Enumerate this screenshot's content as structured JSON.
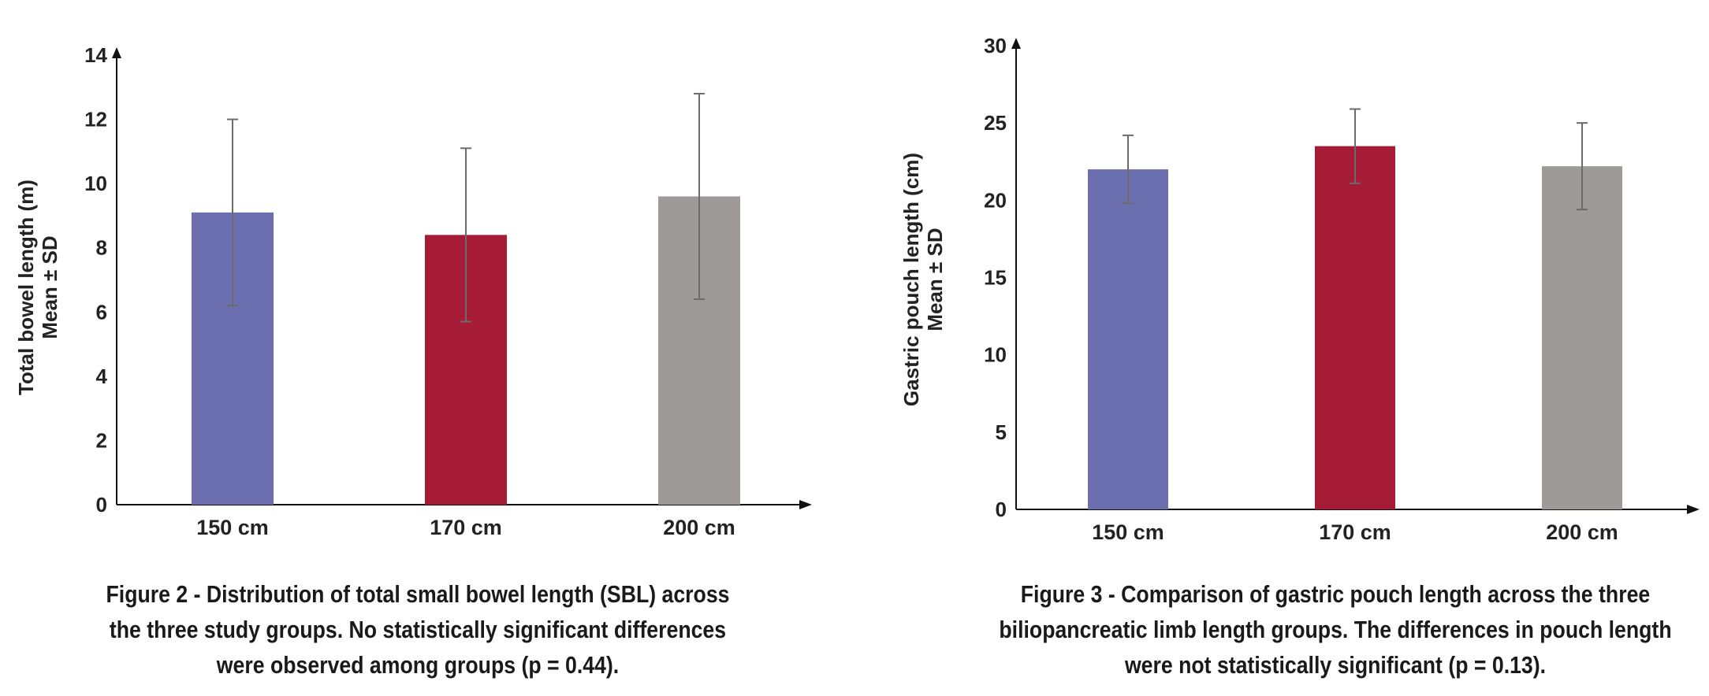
{
  "chart_data": [
    {
      "type": "bar",
      "categories": [
        "150 cm",
        "170 cm",
        "200 cm"
      ],
      "values": [
        9.1,
        8.4,
        9.6
      ],
      "error": [
        2.9,
        2.7,
        3.2
      ],
      "ylabel_line1": "Total bowel length (m)",
      "ylabel_line2": "Mean ± SD",
      "ylim": [
        0,
        14
      ],
      "yticks": [
        0,
        2,
        4,
        6,
        8,
        10,
        12,
        14
      ],
      "colors": [
        "#6b6fb0",
        "#a61c36",
        "#9d9a99"
      ],
      "caption": {
        "lines": [
          "Figure 2 - Distribution of total small bowel length (SBL) across",
          "the three study groups. No statistically significant differences",
          "were observed among groups (p = 0.44)."
        ]
      }
    },
    {
      "type": "bar",
      "categories": [
        "150 cm",
        "170 cm",
        "200 cm"
      ],
      "values": [
        22.0,
        23.5,
        22.2
      ],
      "error": [
        2.2,
        2.4,
        2.8
      ],
      "ylabel_line1": "Gastric pouch length (cm)",
      "ylabel_line2": "Mean ± SD",
      "ylim": [
        0,
        30
      ],
      "yticks": [
        0,
        5,
        10,
        15,
        20,
        25,
        30
      ],
      "colors": [
        "#6b6fb0",
        "#a61c36",
        "#9d9a99"
      ],
      "caption": {
        "lines": [
          "Figure 3 - Comparison of gastric pouch length across the three",
          "biliopancreatic limb length groups. The differences in pouch length",
          "were not statistically significant (p = 0.13)."
        ]
      }
    }
  ]
}
